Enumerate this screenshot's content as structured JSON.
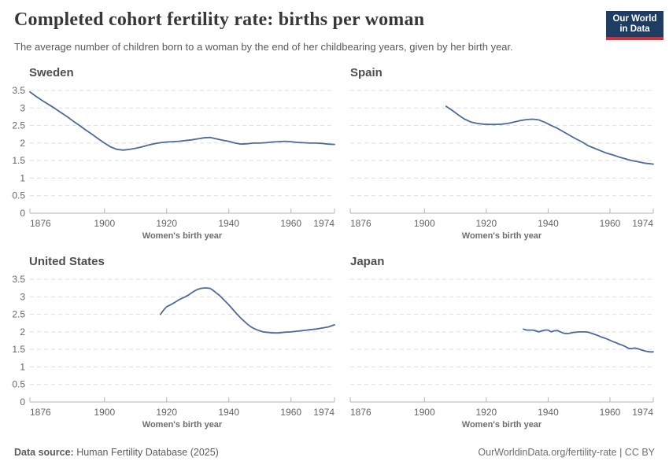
{
  "header": {
    "title": "Completed cohort fertility rate: births per woman",
    "subtitle": "The average number of children born to a woman by the end of her childbearing years, given by her birth year.",
    "logo": {
      "line1": "Our World",
      "line2": "in Data",
      "bg_color": "#1d3d63",
      "accent_color": "#d13239"
    }
  },
  "footer": {
    "source_label": "Data source:",
    "source_text": " Human Fertility Database (2025)",
    "link_text": "OurWorldinData.org/fertility-rate | CC BY"
  },
  "colors": {
    "line": "#4c6a9c",
    "grid": "#dddddd",
    "axis": "#b5b5b5",
    "tick_label": "#666666",
    "axis_title": "#6d6d6d"
  },
  "chart_data": [
    {
      "type": "line",
      "title": "Sweden",
      "xlabel": "Women's birth year",
      "xlim": [
        1876,
        1974
      ],
      "ylim": [
        0,
        3.5
      ],
      "x_ticks": [
        1876,
        1900,
        1920,
        1940,
        1960,
        1974
      ],
      "y_ticks": [
        0,
        0.5,
        1,
        1.5,
        2,
        2.5,
        3,
        3.5
      ],
      "show_y_labels": true,
      "grid": true,
      "legend": "none",
      "points": [
        [
          1876,
          3.46
        ],
        [
          1878,
          3.33
        ],
        [
          1880,
          3.21
        ],
        [
          1882,
          3.1
        ],
        [
          1884,
          2.99
        ],
        [
          1886,
          2.87
        ],
        [
          1888,
          2.75
        ],
        [
          1890,
          2.62
        ],
        [
          1892,
          2.5
        ],
        [
          1894,
          2.37
        ],
        [
          1896,
          2.25
        ],
        [
          1898,
          2.12
        ],
        [
          1900,
          2.0
        ],
        [
          1902,
          1.89
        ],
        [
          1904,
          1.82
        ],
        [
          1906,
          1.8
        ],
        [
          1908,
          1.82
        ],
        [
          1910,
          1.85
        ],
        [
          1912,
          1.89
        ],
        [
          1914,
          1.94
        ],
        [
          1916,
          1.98
        ],
        [
          1918,
          2.01
        ],
        [
          1920,
          2.03
        ],
        [
          1922,
          2.04
        ],
        [
          1924,
          2.05
        ],
        [
          1926,
          2.07
        ],
        [
          1928,
          2.09
        ],
        [
          1930,
          2.12
        ],
        [
          1932,
          2.15
        ],
        [
          1934,
          2.16
        ],
        [
          1936,
          2.12
        ],
        [
          1938,
          2.08
        ],
        [
          1940,
          2.05
        ],
        [
          1942,
          2.0
        ],
        [
          1944,
          1.97
        ],
        [
          1946,
          1.98
        ],
        [
          1948,
          2.0
        ],
        [
          1950,
          2.0
        ],
        [
          1952,
          2.01
        ],
        [
          1954,
          2.03
        ],
        [
          1956,
          2.04
        ],
        [
          1958,
          2.05
        ],
        [
          1960,
          2.04
        ],
        [
          1962,
          2.02
        ],
        [
          1964,
          2.01
        ],
        [
          1966,
          2.0
        ],
        [
          1968,
          2.0
        ],
        [
          1970,
          1.99
        ],
        [
          1972,
          1.97
        ],
        [
          1974,
          1.96
        ]
      ]
    },
    {
      "type": "line",
      "title": "Spain",
      "xlabel": "Women's birth year",
      "xlim": [
        1876,
        1974
      ],
      "ylim": [
        0,
        3.5
      ],
      "x_ticks": [
        1876,
        1900,
        1920,
        1940,
        1960,
        1974
      ],
      "y_ticks": [
        0,
        0.5,
        1,
        1.5,
        2,
        2.5,
        3,
        3.5
      ],
      "show_y_labels": false,
      "grid": true,
      "legend": "none",
      "points": [
        [
          1907,
          3.05
        ],
        [
          1909,
          2.93
        ],
        [
          1911,
          2.8
        ],
        [
          1913,
          2.68
        ],
        [
          1915,
          2.6
        ],
        [
          1917,
          2.56
        ],
        [
          1919,
          2.54
        ],
        [
          1921,
          2.53
        ],
        [
          1923,
          2.53
        ],
        [
          1925,
          2.54
        ],
        [
          1927,
          2.56
        ],
        [
          1929,
          2.6
        ],
        [
          1931,
          2.64
        ],
        [
          1933,
          2.67
        ],
        [
          1935,
          2.68
        ],
        [
          1937,
          2.66
        ],
        [
          1939,
          2.59
        ],
        [
          1941,
          2.5
        ],
        [
          1943,
          2.42
        ],
        [
          1945,
          2.32
        ],
        [
          1947,
          2.22
        ],
        [
          1949,
          2.12
        ],
        [
          1951,
          2.03
        ],
        [
          1953,
          1.92
        ],
        [
          1955,
          1.85
        ],
        [
          1957,
          1.78
        ],
        [
          1959,
          1.71
        ],
        [
          1961,
          1.66
        ],
        [
          1963,
          1.6
        ],
        [
          1965,
          1.55
        ],
        [
          1967,
          1.5
        ],
        [
          1969,
          1.47
        ],
        [
          1971,
          1.43
        ],
        [
          1973,
          1.41
        ],
        [
          1974,
          1.4
        ]
      ]
    },
    {
      "type": "line",
      "title": "United States",
      "xlabel": "Women's birth year",
      "xlim": [
        1876,
        1974
      ],
      "ylim": [
        0,
        3.5
      ],
      "x_ticks": [
        1876,
        1900,
        1920,
        1940,
        1960,
        1974
      ],
      "y_ticks": [
        0,
        0.5,
        1,
        1.5,
        2,
        2.5,
        3,
        3.5
      ],
      "show_y_labels": true,
      "grid": true,
      "legend": "none",
      "points": [
        [
          1918,
          2.5
        ],
        [
          1919,
          2.62
        ],
        [
          1920,
          2.72
        ],
        [
          1921,
          2.76
        ],
        [
          1922,
          2.81
        ],
        [
          1923,
          2.86
        ],
        [
          1924,
          2.92
        ],
        [
          1925,
          2.96
        ],
        [
          1926,
          3.0
        ],
        [
          1927,
          3.05
        ],
        [
          1928,
          3.11
        ],
        [
          1929,
          3.17
        ],
        [
          1930,
          3.21
        ],
        [
          1931,
          3.24
        ],
        [
          1932,
          3.25
        ],
        [
          1933,
          3.25
        ],
        [
          1934,
          3.24
        ],
        [
          1935,
          3.18
        ],
        [
          1936,
          3.11
        ],
        [
          1937,
          3.04
        ],
        [
          1938,
          2.95
        ],
        [
          1939,
          2.86
        ],
        [
          1940,
          2.77
        ],
        [
          1941,
          2.67
        ],
        [
          1942,
          2.57
        ],
        [
          1943,
          2.47
        ],
        [
          1944,
          2.38
        ],
        [
          1945,
          2.3
        ],
        [
          1946,
          2.22
        ],
        [
          1947,
          2.15
        ],
        [
          1948,
          2.1
        ],
        [
          1949,
          2.06
        ],
        [
          1950,
          2.03
        ],
        [
          1951,
          2.0
        ],
        [
          1952,
          1.99
        ],
        [
          1953,
          1.98
        ],
        [
          1954,
          1.97
        ],
        [
          1956,
          1.97
        ],
        [
          1958,
          1.99
        ],
        [
          1960,
          2.0
        ],
        [
          1962,
          2.02
        ],
        [
          1964,
          2.04
        ],
        [
          1966,
          2.06
        ],
        [
          1968,
          2.08
        ],
        [
          1970,
          2.11
        ],
        [
          1972,
          2.14
        ],
        [
          1974,
          2.2
        ]
      ]
    },
    {
      "type": "line",
      "title": "Japan",
      "xlabel": "Women's birth year",
      "xlim": [
        1876,
        1974
      ],
      "ylim": [
        0,
        3.5
      ],
      "x_ticks": [
        1876,
        1900,
        1920,
        1940,
        1960,
        1974
      ],
      "y_ticks": [
        0,
        0.5,
        1,
        1.5,
        2,
        2.5,
        3,
        3.5
      ],
      "show_y_labels": false,
      "grid": true,
      "legend": "none",
      "points": [
        [
          1932,
          2.08
        ],
        [
          1933,
          2.05
        ],
        [
          1934,
          2.05
        ],
        [
          1935,
          2.05
        ],
        [
          1936,
          2.03
        ],
        [
          1937,
          2.0
        ],
        [
          1938,
          2.03
        ],
        [
          1939,
          2.05
        ],
        [
          1940,
          2.05
        ],
        [
          1941,
          2.0
        ],
        [
          1942,
          2.03
        ],
        [
          1943,
          2.04
        ],
        [
          1944,
          2.0
        ],
        [
          1945,
          1.96
        ],
        [
          1946,
          1.95
        ],
        [
          1947,
          1.96
        ],
        [
          1948,
          1.98
        ],
        [
          1950,
          2.0
        ],
        [
          1952,
          2.0
        ],
        [
          1953,
          1.99
        ],
        [
          1954,
          1.96
        ],
        [
          1955,
          1.93
        ],
        [
          1956,
          1.9
        ],
        [
          1957,
          1.86
        ],
        [
          1958,
          1.83
        ],
        [
          1959,
          1.8
        ],
        [
          1960,
          1.76
        ],
        [
          1961,
          1.72
        ],
        [
          1962,
          1.69
        ],
        [
          1963,
          1.65
        ],
        [
          1964,
          1.62
        ],
        [
          1965,
          1.58
        ],
        [
          1966,
          1.53
        ],
        [
          1967,
          1.52
        ],
        [
          1968,
          1.54
        ],
        [
          1969,
          1.52
        ],
        [
          1970,
          1.49
        ],
        [
          1971,
          1.46
        ],
        [
          1972,
          1.44
        ],
        [
          1973,
          1.43
        ],
        [
          1974,
          1.43
        ]
      ]
    }
  ]
}
